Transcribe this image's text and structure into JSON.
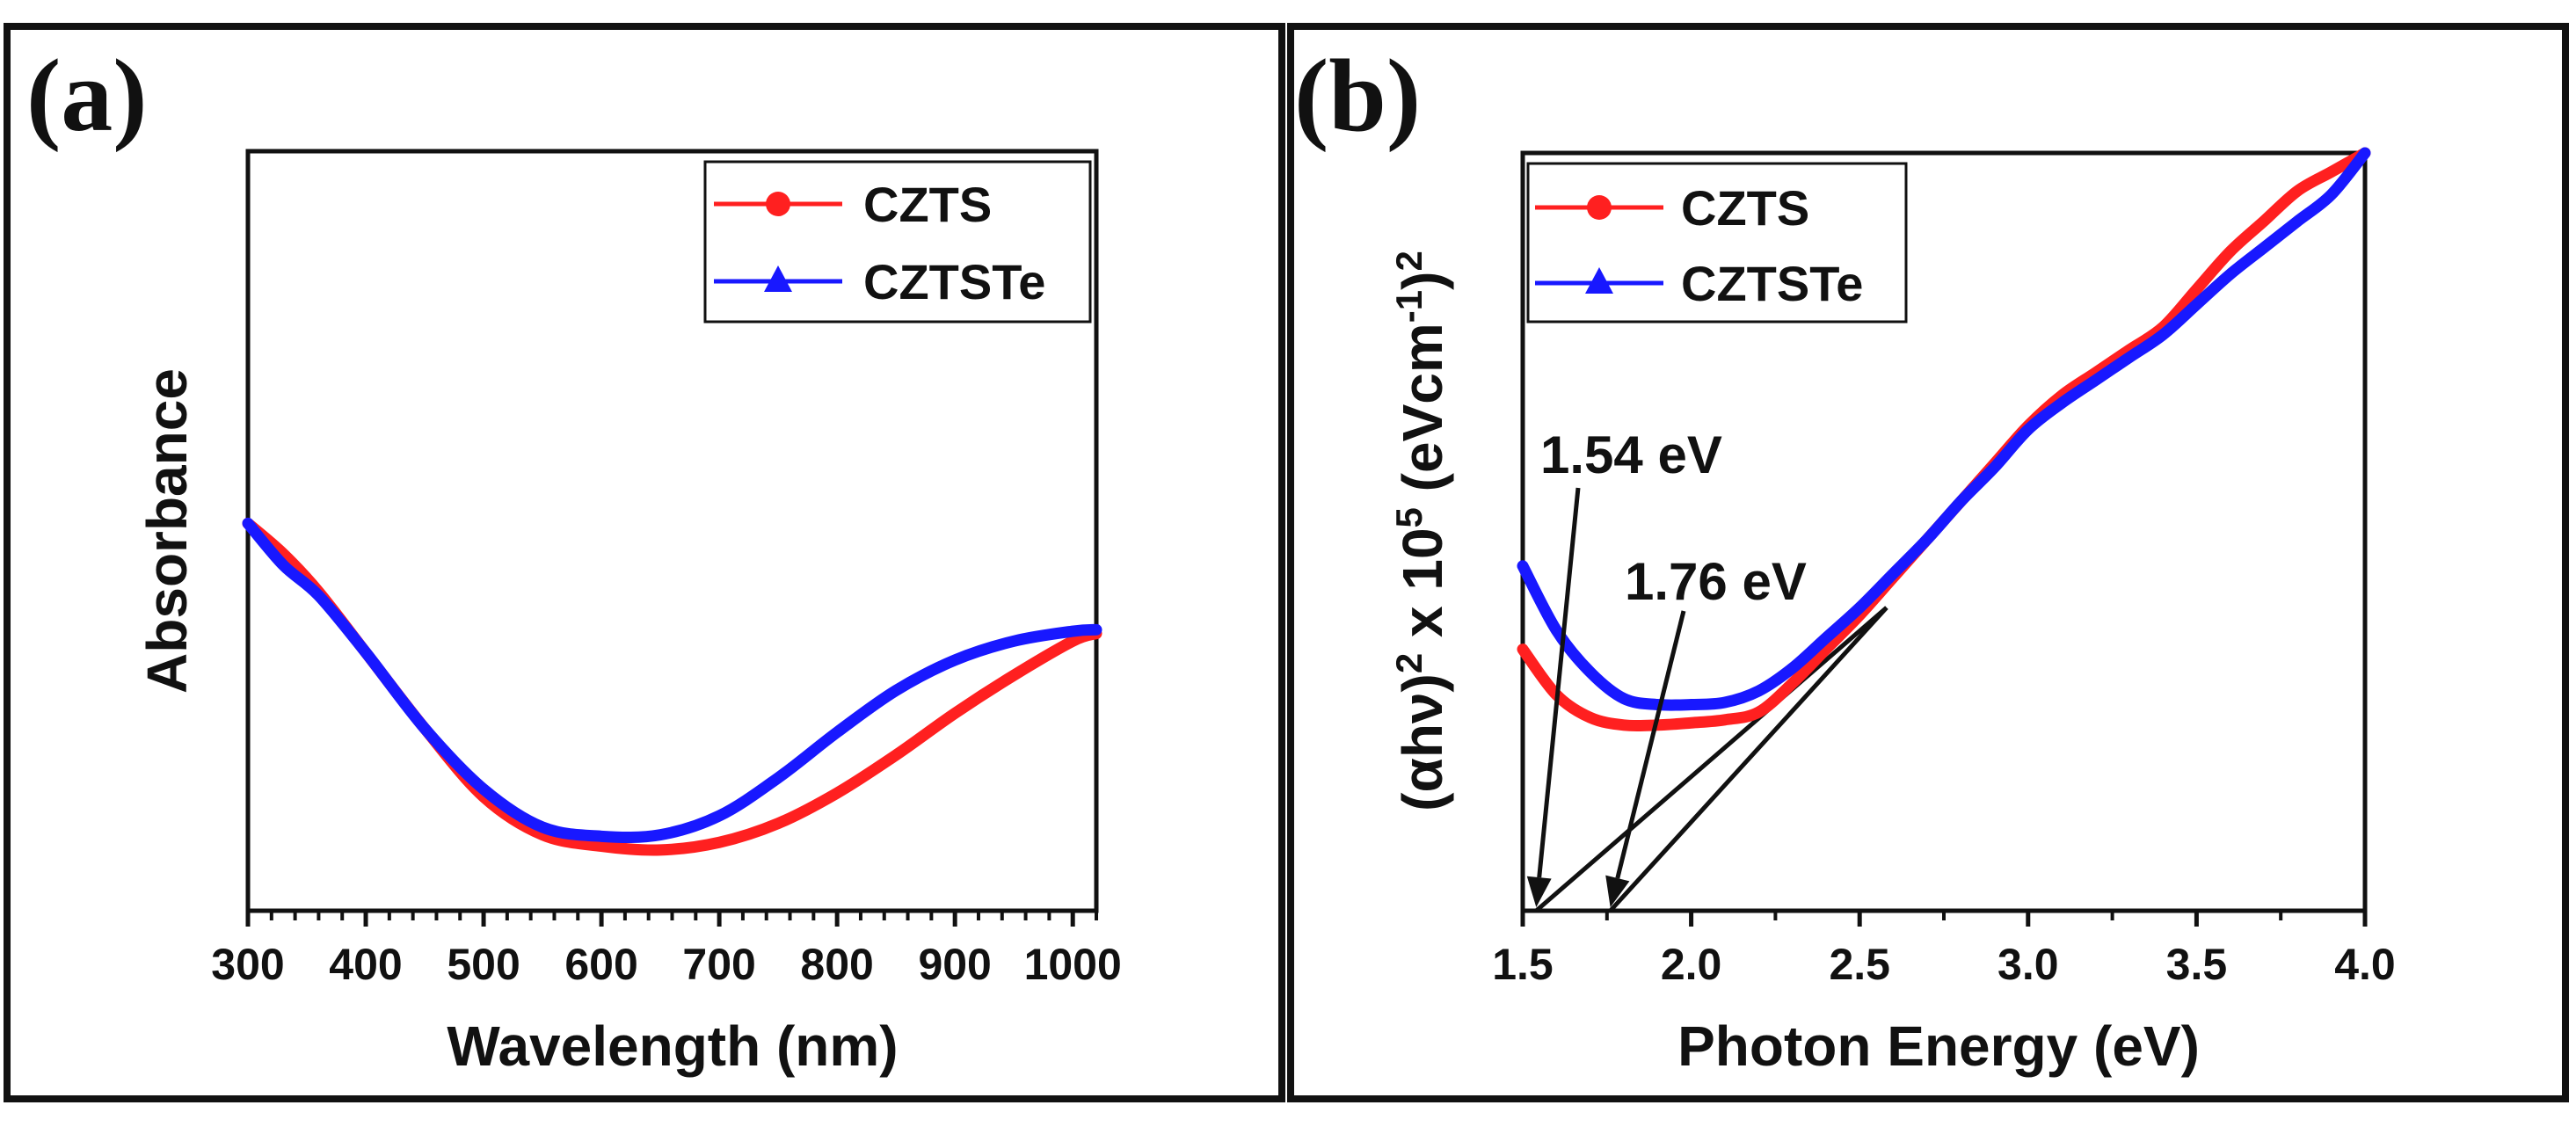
{
  "chart_data": [
    {
      "panel": "(a)",
      "type": "line",
      "xlabel": "Wavelength (nm)",
      "ylabel": "Absorbance",
      "xlim": [
        300,
        1020
      ],
      "ylim": [
        0,
        1
      ],
      "xticks": [
        "300",
        "400",
        "500",
        "600",
        "700",
        "800",
        "900",
        "1000"
      ],
      "x_tick_values": [
        300,
        400,
        500,
        600,
        700,
        800,
        900,
        1000
      ],
      "yticks_shown": false,
      "legend": {
        "position": "top-right",
        "entries": [
          "CZTS",
          "CZTSTe"
        ]
      },
      "series": [
        {
          "name": "CZTS",
          "color": "#ff2020",
          "marker": "circle",
          "x": [
            300,
            330,
            360,
            400,
            450,
            500,
            550,
            600,
            650,
            700,
            750,
            800,
            850,
            900,
            950,
            1000,
            1020
          ],
          "y": [
            0.51,
            0.47,
            0.42,
            0.34,
            0.24,
            0.15,
            0.1,
            0.085,
            0.08,
            0.09,
            0.115,
            0.155,
            0.205,
            0.26,
            0.31,
            0.355,
            0.365
          ]
        },
        {
          "name": "CZTSTe",
          "color": "#1818ff",
          "marker": "triangle",
          "x": [
            300,
            330,
            360,
            400,
            450,
            500,
            550,
            600,
            650,
            700,
            750,
            800,
            850,
            900,
            950,
            1000,
            1020
          ],
          "y": [
            0.51,
            0.455,
            0.415,
            0.34,
            0.24,
            0.16,
            0.11,
            0.098,
            0.1,
            0.125,
            0.175,
            0.235,
            0.29,
            0.33,
            0.355,
            0.368,
            0.37
          ]
        }
      ]
    },
    {
      "panel": "(b)",
      "type": "line",
      "xlabel": "Photon Energy (eV)",
      "ylabel_parts": {
        "open": "(",
        "alpha": "α",
        "hv": "hν",
        "close1": ")",
        "sup2": "2",
        "mid": " x 10",
        "sup5": "5",
        "unit_open": " (eVcm",
        "sup_neg1": "-1",
        "unit_close": ")",
        "sup2b": "2"
      },
      "xlim": [
        1.5,
        4.0
      ],
      "ylim": [
        0,
        1
      ],
      "xticks": [
        "1.5",
        "2.0",
        "2.5",
        "3.0",
        "3.5",
        "4.0"
      ],
      "x_tick_values": [
        1.5,
        2.0,
        2.5,
        3.0,
        3.5,
        4.0
      ],
      "yticks_shown": false,
      "legend": {
        "position": "top-left",
        "entries": [
          "CZTS",
          "CZTSTe"
        ]
      },
      "series": [
        {
          "name": "CZTS",
          "color": "#ff2020",
          "marker": "circle",
          "x": [
            1.5,
            1.6,
            1.7,
            1.8,
            1.9,
            2.0,
            2.1,
            2.2,
            2.3,
            2.4,
            2.5,
            2.6,
            2.7,
            2.8,
            2.9,
            3.0,
            3.1,
            3.2,
            3.3,
            3.4,
            3.5,
            3.6,
            3.7,
            3.8,
            3.9,
            4.0
          ],
          "y": [
            0.345,
            0.285,
            0.255,
            0.245,
            0.245,
            0.248,
            0.252,
            0.262,
            0.3,
            0.345,
            0.39,
            0.44,
            0.49,
            0.54,
            0.59,
            0.64,
            0.68,
            0.71,
            0.74,
            0.77,
            0.82,
            0.87,
            0.91,
            0.95,
            0.975,
            1.0
          ]
        },
        {
          "name": "CZTSTe",
          "color": "#1818ff",
          "marker": "triangle",
          "x": [
            1.5,
            1.6,
            1.7,
            1.8,
            1.9,
            2.0,
            2.1,
            2.2,
            2.3,
            2.4,
            2.5,
            2.6,
            2.7,
            2.8,
            2.9,
            3.0,
            3.1,
            3.2,
            3.3,
            3.4,
            3.5,
            3.6,
            3.7,
            3.8,
            3.9,
            4.0
          ],
          "y": [
            0.455,
            0.37,
            0.315,
            0.28,
            0.272,
            0.272,
            0.275,
            0.29,
            0.32,
            0.36,
            0.4,
            0.445,
            0.49,
            0.54,
            0.585,
            0.635,
            0.67,
            0.7,
            0.73,
            0.76,
            0.8,
            0.84,
            0.875,
            0.91,
            0.945,
            1.0
          ]
        }
      ],
      "annotations": [
        {
          "text": "1.54 eV",
          "target_x": 1.54
        },
        {
          "text": "1.76 eV",
          "target_x": 1.76
        }
      ],
      "tangent_lines": [
        {
          "x1": 1.54,
          "y1": 0.0,
          "x2": 2.58,
          "y2": 0.4
        },
        {
          "x1": 1.76,
          "y1": 0.0,
          "x2": 2.58,
          "y2": 0.4
        }
      ]
    }
  ]
}
